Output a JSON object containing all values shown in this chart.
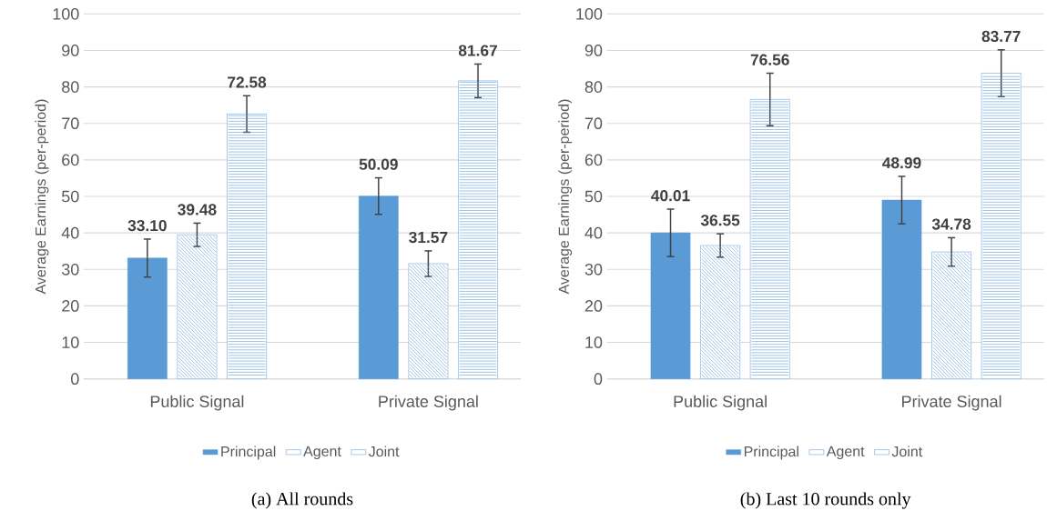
{
  "chart_data": [
    {
      "type": "bar",
      "ylabel": "Average Earnings (per-period)",
      "categories": [
        "Public Signal",
        "Private Signal"
      ],
      "series": [
        {
          "name": "Principal",
          "color": "#5b9bd5",
          "values": [
            33.1,
            50.09
          ],
          "errors": [
            5.2,
            5.0
          ],
          "value_labels": [
            "33.10",
            "50.09"
          ]
        },
        {
          "name": "Agent",
          "color": "#5b9bd5",
          "values": [
            39.48,
            31.57
          ],
          "errors": [
            3.2,
            3.5
          ],
          "value_labels": [
            "39.48",
            "31.57"
          ]
        },
        {
          "name": "Joint",
          "color": "#5b9bd5",
          "values": [
            72.58,
            81.67
          ],
          "errors": [
            5.0,
            4.6
          ],
          "value_labels": [
            "72.58",
            "81.67"
          ]
        }
      ],
      "ylim": [
        0,
        100
      ],
      "yticks": [
        0,
        10,
        20,
        30,
        40,
        50,
        60,
        70,
        80,
        90,
        100
      ],
      "grid": "y",
      "legend": "bottom",
      "annotations": [
        "(a) All rounds"
      ]
    },
    {
      "type": "bar",
      "ylabel": "Average Earnings (per-period)",
      "categories": [
        "Public Signal",
        "Private Signal"
      ],
      "series": [
        {
          "name": "Principal",
          "color": "#5b9bd5",
          "values": [
            40.01,
            48.99
          ],
          "errors": [
            6.5,
            6.5
          ],
          "value_labels": [
            "40.01",
            "48.99"
          ]
        },
        {
          "name": "Agent",
          "color": "#5b9bd5",
          "values": [
            36.55,
            34.78
          ],
          "errors": [
            3.2,
            3.9
          ],
          "value_labels": [
            "36.55",
            "34.78"
          ]
        },
        {
          "name": "Joint",
          "color": "#5b9bd5",
          "values": [
            76.56,
            83.77
          ],
          "errors": [
            7.2,
            6.4
          ],
          "value_labels": [
            "76.56",
            "83.77"
          ]
        }
      ],
      "ylim": [
        0,
        100
      ],
      "yticks": [
        0,
        10,
        20,
        30,
        40,
        50,
        60,
        70,
        80,
        90,
        100
      ],
      "grid": "y",
      "legend": "bottom",
      "annotations": [
        "(b) Last 10 rounds only"
      ]
    }
  ]
}
